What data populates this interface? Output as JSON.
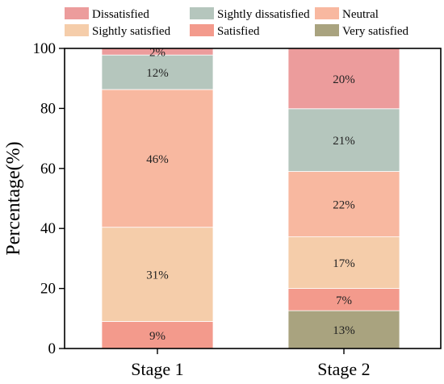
{
  "chart_data": {
    "type": "bar",
    "stacked": true,
    "categories": [
      "Stage 1",
      "Stage 2"
    ],
    "ylabel": "Percentage(%)",
    "ylim": [
      0,
      100
    ],
    "yticks": [
      0,
      20,
      40,
      60,
      80,
      100
    ],
    "grid": false,
    "legend_position": "top",
    "series": [
      {
        "name": "Very satisfied",
        "color": "#a9a37f",
        "values": [
          0,
          12.6
        ],
        "labels": [
          "",
          "13%"
        ]
      },
      {
        "name": "Satisfied",
        "color": "#f39a8c",
        "values": [
          9,
          7.4
        ],
        "labels": [
          "9%",
          "7%"
        ]
      },
      {
        "name": "Sightly satisfied",
        "color": "#f5cdaa",
        "values": [
          31.4,
          17.2
        ],
        "labels": [
          "31%",
          "17%"
        ]
      },
      {
        "name": "Neutral",
        "color": "#f8b8a0",
        "values": [
          45.9,
          21.8
        ],
        "labels": [
          "46%",
          "22%"
        ]
      },
      {
        "name": "Sightly dissatisfied",
        "color": "#b5c6bd",
        "values": [
          11.5,
          20.9
        ],
        "labels": [
          "12%",
          "21%"
        ]
      },
      {
        "name": "Dissatisfied",
        "color": "#ec9c9c",
        "values": [
          2.2,
          20.1
        ],
        "labels": [
          "2%",
          "20%"
        ]
      }
    ],
    "legend_order": [
      "Dissatisfied",
      "Sightly dissatisfied",
      "Neutral",
      "Sightly satisfied",
      "Satisfied",
      "Very satisfied"
    ]
  }
}
